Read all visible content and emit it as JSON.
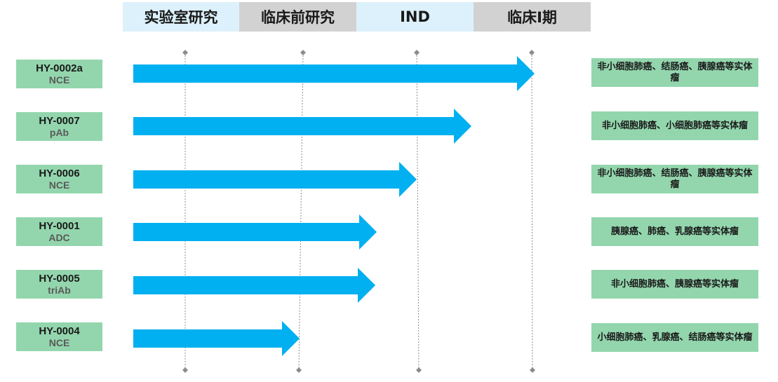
{
  "phases": [
    {
      "label": "实验室研究",
      "color": "#dcf1fb"
    },
    {
      "label": "临床前研究",
      "color": "#d2d2d2"
    },
    {
      "label": "IND",
      "color": "#dcf1fb"
    },
    {
      "label": "临床I期",
      "color": "#d2d2d2"
    }
  ],
  "arrow_color": "#00b0f0",
  "pipeline": [
    {
      "code": "HY-0002a",
      "type": "NCE",
      "indication": "非小细胞肺癌、结肠癌、胰腺癌等实体瘤"
    },
    {
      "code": "HY-0007",
      "type": "pAb",
      "indication": "非小细胞肺癌、小细胞肺癌等实体瘤"
    },
    {
      "code": "HY-0006",
      "type": "NCE",
      "indication": "非小细胞肺癌、结肠癌、胰腺癌等实体瘤"
    },
    {
      "code": "HY-0001",
      "type": "ADC",
      "indication": "胰腺癌、肺癌、乳腺癌等实体瘤"
    },
    {
      "code": "HY-0005",
      "type": "triAb",
      "indication": "非小细胞肺癌、胰腺癌等实体瘤"
    },
    {
      "code": "HY-0004",
      "type": "NCE",
      "indication": "小细胞肺癌、乳腺癌、结肠癌等实体瘤"
    }
  ]
}
